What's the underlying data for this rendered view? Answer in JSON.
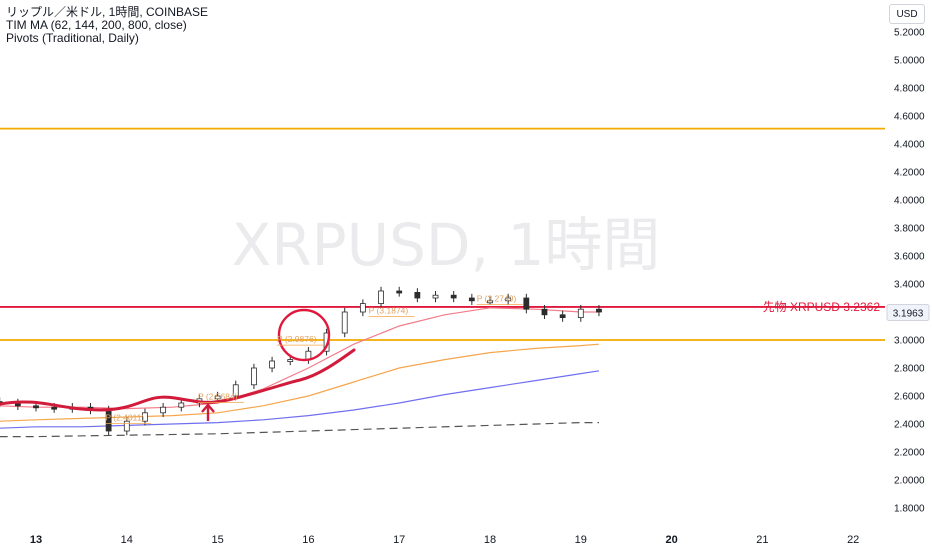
{
  "legend": {
    "line1": "リップル／米ドル, 1時間, COINBASE",
    "line2": "TIM MA (62, 144, 200, 800, close)",
    "line3": "Pivots (Traditional, Daily)"
  },
  "currency_button": "USD",
  "watermark": "XRPUSD, 1時間",
  "chart_data": {
    "type": "line",
    "title": "リップル／米ドル, 1時間, COINBASE",
    "y_axis_ticks": [
      "5.2000",
      "5.0000",
      "4.8000",
      "4.6000",
      "4.4000",
      "4.2000",
      "4.0000",
      "3.8000",
      "3.6000",
      "3.4000",
      "3.2000",
      "3.0000",
      "2.8000",
      "2.6000",
      "2.4000",
      "2.2000",
      "2.0000",
      "1.8000"
    ],
    "x_axis_ticks": [
      "13",
      "14",
      "15",
      "16",
      "17",
      "18",
      "19",
      "20",
      "21",
      "22"
    ],
    "bold_ticks": [
      "13",
      "20"
    ],
    "ylim": [
      1.72,
      5.31
    ],
    "grid": false,
    "last_price": "3.1963",
    "futures_label": "先物 XRPUSD 3.2362",
    "futures_value": 3.2362,
    "horizontal_lines": [
      {
        "value": 4.51,
        "color": "#f2a900"
      },
      {
        "value": 3.0,
        "color": "#f2a900"
      },
      {
        "value": 3.2362,
        "color": "#e0193c"
      }
    ],
    "pivot_labels": [
      {
        "text": "P (2.4011)",
        "day": 13.83,
        "value": 2.425
      },
      {
        "text": "P (2.5684)",
        "day": 14.85,
        "value": 2.575
      },
      {
        "text": "P (2.9876)",
        "day": 15.72,
        "value": 2.985
      },
      {
        "text": "P (3.1874)",
        "day": 16.73,
        "value": 3.19
      },
      {
        "text": "P (3.2749)",
        "day": 17.92,
        "value": 3.275
      }
    ],
    "series": [
      {
        "color": "#2c2c2c",
        "style": "candles",
        "x": [
          12.6,
          12.8,
          13.0,
          13.2,
          13.4,
          13.6,
          13.8,
          14.0,
          14.2,
          14.4,
          14.6,
          14.8,
          15.0,
          15.2,
          15.4,
          15.6,
          15.8,
          16.0,
          16.2,
          16.4,
          16.6,
          16.8,
          17.0,
          17.2,
          17.4,
          17.6,
          17.8,
          18.0,
          18.2,
          18.4,
          18.6,
          18.8,
          19.0,
          19.2
        ],
        "values": [
          2.55,
          2.53,
          2.52,
          2.51,
          2.52,
          2.5,
          2.35,
          2.42,
          2.48,
          2.52,
          2.55,
          2.58,
          2.6,
          2.68,
          2.8,
          2.85,
          2.86,
          2.92,
          3.05,
          3.2,
          3.26,
          3.35,
          3.34,
          3.3,
          3.32,
          3.3,
          3.28,
          3.28,
          3.3,
          3.22,
          3.18,
          3.16,
          3.22,
          3.2
        ]
      },
      {
        "color": "#f27c8a",
        "x": [
          12.6,
          13.0,
          13.5,
          14.0,
          14.5,
          15.0,
          15.5,
          16.0,
          16.5,
          17.0,
          17.5,
          18.0,
          18.5,
          19.0,
          19.2
        ],
        "values": [
          2.53,
          2.52,
          2.52,
          2.51,
          2.52,
          2.55,
          2.65,
          2.8,
          2.97,
          3.1,
          3.18,
          3.23,
          3.22,
          3.2,
          3.2
        ]
      },
      {
        "color": "#f5a64d",
        "x": [
          12.6,
          13.0,
          13.5,
          14.0,
          14.5,
          15.0,
          15.5,
          16.0,
          16.5,
          17.0,
          17.5,
          18.0,
          18.5,
          19.0,
          19.2
        ],
        "values": [
          2.42,
          2.43,
          2.44,
          2.45,
          2.46,
          2.48,
          2.53,
          2.6,
          2.7,
          2.8,
          2.86,
          2.91,
          2.94,
          2.96,
          2.97
        ]
      },
      {
        "color": "#6f6ff0",
        "x": [
          12.6,
          13.0,
          13.5,
          14.0,
          14.5,
          15.0,
          15.5,
          16.0,
          16.5,
          17.0,
          17.5,
          18.0,
          18.5,
          19.0,
          19.2
        ],
        "values": [
          2.37,
          2.38,
          2.38,
          2.39,
          2.4,
          2.41,
          2.43,
          2.46,
          2.5,
          2.55,
          2.61,
          2.66,
          2.71,
          2.76,
          2.78
        ]
      },
      {
        "color": "#555555",
        "dashed": true,
        "x": [
          12.6,
          13.0,
          14.0,
          15.0,
          16.0,
          17.0,
          18.0,
          19.0,
          19.2
        ],
        "values": [
          2.31,
          2.31,
          2.32,
          2.33,
          2.35,
          2.37,
          2.39,
          2.41,
          2.41
        ]
      }
    ]
  }
}
